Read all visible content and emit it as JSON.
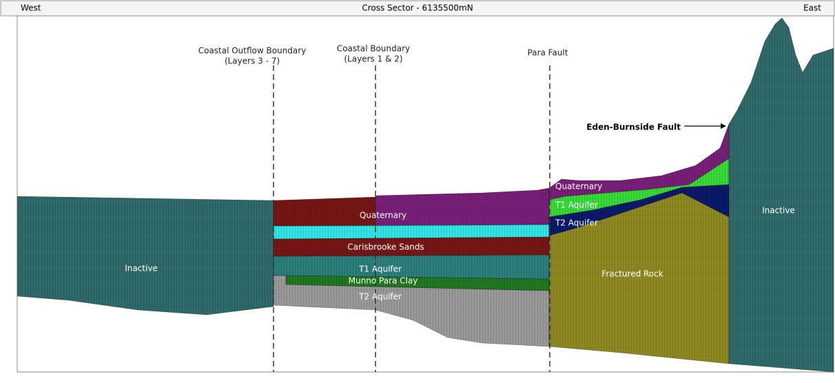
{
  "header": {
    "left": "West",
    "title": "Cross Sector - 6135500mN",
    "right": "East"
  },
  "boundaries": [
    {
      "lines": [
        "Coastal Outflow Boundary",
        "(Layers 3 - 7)"
      ]
    },
    {
      "lines": [
        "Coastal Boundary",
        "(Layers 1 & 2)"
      ]
    },
    {
      "lines": [
        "Para Fault"
      ]
    }
  ],
  "west": {
    "inactive": "Inactive"
  },
  "coastal": {
    "quaternary": "Quaternary",
    "carisbrooke": "Carisbrooke Sands",
    "t1": "T1 Aquifer",
    "munno": "Munno Para Clay",
    "t2": "T2 Aquifer"
  },
  "east": {
    "quaternary": "Quaternary",
    "t1": "T1 Aquifer",
    "t2": "T2 Aquifer",
    "fractured": "Fractured Rock",
    "fault": "Eden-Burnside Fault",
    "inactive": "Inactive"
  }
}
